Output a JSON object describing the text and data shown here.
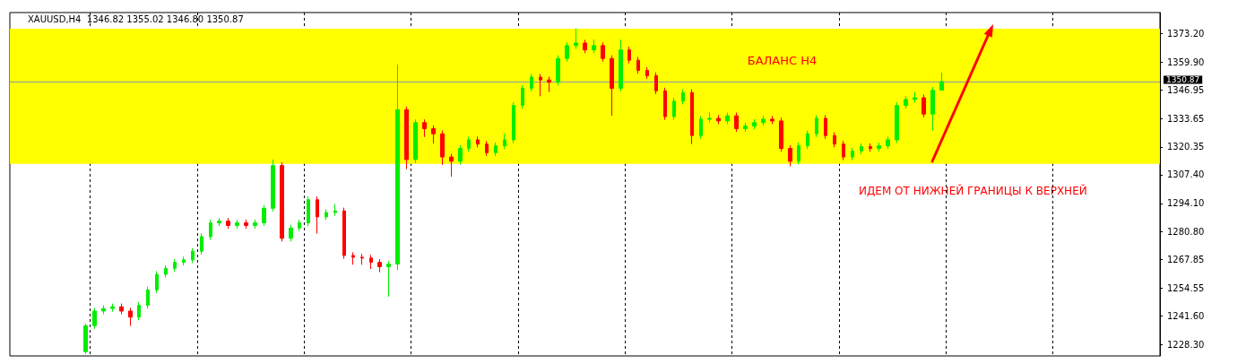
{
  "chart_data": {
    "type": "candlestick",
    "title": "XAUUSD,H4  1346.82 1355.02 1346.80 1350.87",
    "categories": [
      null,
      null,
      null,
      null,
      null,
      null,
      null,
      null,
      null,
      null,
      null,
      null,
      null,
      null,
      null,
      null,
      null,
      null,
      null,
      null,
      null,
      null,
      null,
      null,
      null,
      null,
      null,
      null,
      null,
      null,
      null,
      null,
      null,
      null,
      null,
      null,
      null,
      null,
      null,
      null,
      null,
      null,
      null,
      null,
      null,
      null,
      null,
      null,
      null,
      null,
      null,
      null,
      null,
      null,
      null,
      null,
      null,
      null,
      null,
      null,
      null,
      null,
      null,
      null,
      null,
      null,
      null,
      null,
      null,
      null,
      null,
      null,
      null,
      null,
      null,
      null,
      null,
      null,
      null,
      null,
      null,
      null,
      null,
      null,
      null,
      null,
      null,
      null,
      null,
      null,
      null,
      null,
      null,
      null,
      null,
      null,
      null,
      null,
      null,
      null,
      null,
      null,
      null,
      null,
      null,
      null,
      null,
      null,
      null,
      null,
      null,
      null,
      null,
      null,
      null,
      null,
      null,
      null,
      null,
      null,
      null,
      null,
      null,
      null,
      null,
      null,
      null,
      null,
      null
    ],
    "ohlc": [
      null,
      null,
      null,
      null,
      null,
      null,
      null,
      null,
      [
        1225.0,
        1238.0,
        1224.0,
        1237.1
      ],
      [
        1237.1,
        1245.4,
        1235.6,
        1243.9
      ],
      [
        1243.9,
        1246.6,
        1242.4,
        1245.1
      ],
      [
        1245.1,
        1247.4,
        1243.6,
        1245.9
      ],
      [
        1245.9,
        1247.4,
        1242.4,
        1243.9
      ],
      [
        1243.9,
        1245.4,
        1237.0,
        1241.1
      ],
      [
        1241.1,
        1248.1,
        1239.6,
        1246.6
      ],
      [
        1246.6,
        1255.3,
        1245.1,
        1253.8
      ],
      [
        1253.8,
        1262.5,
        1252.3,
        1261.0
      ],
      [
        1261.0,
        1265.3,
        1259.5,
        1263.8
      ],
      [
        1263.8,
        1268.1,
        1262.3,
        1266.6
      ],
      [
        1266.6,
        1269.3,
        1265.1,
        1267.8
      ],
      [
        1267.8,
        1273.3,
        1266.3,
        1271.8
      ],
      [
        1271.8,
        1280.1,
        1270.3,
        1278.6
      ],
      [
        1278.6,
        1286.5,
        1277.1,
        1285.0
      ],
      [
        1285.0,
        1287.3,
        1283.5,
        1285.8
      ],
      [
        1285.8,
        1287.3,
        1282.3,
        1283.8
      ],
      [
        1283.8,
        1286.5,
        1282.3,
        1285.0
      ],
      [
        1285.0,
        1286.5,
        1282.3,
        1283.8
      ],
      [
        1283.8,
        1286.5,
        1282.3,
        1285.0
      ],
      [
        1285.0,
        1293.3,
        1283.5,
        1291.8
      ],
      [
        1291.8,
        1314.5,
        1290.3,
        1311.7
      ],
      [
        1311.7,
        1313.2,
        1276.3,
        1277.8
      ],
      [
        1277.8,
        1284.1,
        1276.3,
        1282.6
      ],
      [
        1282.6,
        1286.5,
        1281.1,
        1285.0
      ],
      [
        1285.0,
        1297.3,
        1283.5,
        1295.8
      ],
      [
        1295.8,
        1297.3,
        1280.0,
        1287.8
      ],
      [
        1287.8,
        1291.3,
        1286.3,
        1289.8
      ],
      [
        1289.8,
        1293.8,
        1288.3,
        1290.6
      ],
      [
        1290.6,
        1292.1,
        1268.3,
        1269.8
      ],
      [
        1269.8,
        1271.3,
        1265.5,
        1269.0
      ],
      [
        1269.0,
        1270.5,
        1265.5,
        1268.6
      ],
      [
        1268.6,
        1270.1,
        1263.5,
        1266.6
      ],
      [
        1266.6,
        1268.1,
        1262.0,
        1264.6
      ],
      [
        1264.6,
        1267.3,
        1250.6,
        1265.8
      ],
      [
        1265.8,
        1358.8,
        1263.0,
        1337.7
      ],
      [
        1337.7,
        1339.2,
        1310.0,
        1314.5
      ],
      [
        1314.5,
        1333.2,
        1313.0,
        1331.7
      ],
      [
        1331.7,
        1333.2,
        1325.0,
        1328.9
      ],
      [
        1328.9,
        1330.4,
        1322.0,
        1326.5
      ],
      [
        1326.5,
        1328.0,
        1312.0,
        1315.7
      ],
      [
        1315.7,
        1317.2,
        1306.5,
        1313.7
      ],
      [
        1313.7,
        1321.2,
        1312.2,
        1319.7
      ],
      [
        1319.7,
        1325.2,
        1318.2,
        1323.7
      ],
      [
        1323.7,
        1325.2,
        1320.2,
        1321.7
      ],
      [
        1321.7,
        1323.2,
        1316.2,
        1317.7
      ],
      [
        1317.7,
        1322.4,
        1316.2,
        1320.9
      ],
      [
        1320.9,
        1326.7,
        1319.4,
        1323.7
      ],
      [
        1323.7,
        1341.2,
        1322.2,
        1339.7
      ],
      [
        1339.7,
        1349.2,
        1338.2,
        1347.7
      ],
      [
        1347.7,
        1354.4,
        1346.2,
        1352.9
      ],
      [
        1352.9,
        1354.4,
        1344.0,
        1351.6
      ],
      [
        1351.6,
        1353.1,
        1346.0,
        1350.5
      ],
      [
        1350.5,
        1363.1,
        1349.0,
        1361.6
      ],
      [
        1361.6,
        1369.1,
        1360.1,
        1367.6
      ],
      [
        1367.6,
        1375.6,
        1366.1,
        1368.8
      ],
      [
        1368.8,
        1370.3,
        1364.1,
        1365.6
      ],
      [
        1365.6,
        1370.5,
        1364.1,
        1367.6
      ],
      [
        1367.6,
        1369.1,
        1360.1,
        1361.6
      ],
      [
        1361.6,
        1363.1,
        1334.9,
        1347.7
      ],
      [
        1347.7,
        1370.4,
        1346.2,
        1365.6
      ],
      [
        1365.6,
        1367.1,
        1359.3,
        1360.8
      ],
      [
        1360.8,
        1362.3,
        1354.5,
        1356.0
      ],
      [
        1356.0,
        1357.5,
        1352.1,
        1353.6
      ],
      [
        1353.6,
        1355.1,
        1345.0,
        1346.5
      ],
      [
        1346.5,
        1348.0,
        1333.0,
        1334.5
      ],
      [
        1334.5,
        1343.2,
        1333.0,
        1341.7
      ],
      [
        1341.7,
        1347.2,
        1340.2,
        1345.7
      ],
      [
        1345.7,
        1347.2,
        1321.7,
        1325.7
      ],
      [
        1325.7,
        1334.8,
        1324.2,
        1333.3
      ],
      [
        1333.3,
        1336.5,
        1331.8,
        1333.7
      ],
      [
        1333.7,
        1335.2,
        1331.0,
        1332.5
      ],
      [
        1332.5,
        1336.4,
        1331.0,
        1334.9
      ],
      [
        1334.9,
        1336.4,
        1327.4,
        1328.9
      ],
      [
        1328.9,
        1331.6,
        1327.4,
        1330.1
      ],
      [
        1330.1,
        1333.2,
        1328.6,
        1331.7
      ],
      [
        1331.7,
        1334.8,
        1330.2,
        1333.3
      ],
      [
        1333.3,
        1334.8,
        1331.0,
        1332.5
      ],
      [
        1332.5,
        1334.0,
        1318.2,
        1319.7
      ],
      [
        1319.7,
        1321.2,
        1311.3,
        1313.7
      ],
      [
        1313.7,
        1322.4,
        1312.2,
        1320.9
      ],
      [
        1320.9,
        1328.0,
        1319.4,
        1326.5
      ],
      [
        1326.5,
        1335.2,
        1325.0,
        1333.7
      ],
      [
        1333.7,
        1335.2,
        1324.2,
        1325.7
      ],
      [
        1325.7,
        1327.2,
        1320.2,
        1321.7
      ],
      [
        1321.7,
        1323.2,
        1314.2,
        1315.7
      ],
      [
        1315.7,
        1320.0,
        1314.2,
        1318.5
      ],
      [
        1318.5,
        1322.0,
        1317.0,
        1320.5
      ],
      [
        1320.5,
        1322.0,
        1318.2,
        1319.7
      ],
      [
        1319.7,
        1322.4,
        1318.2,
        1320.9
      ],
      [
        1320.9,
        1325.2,
        1319.4,
        1323.7
      ],
      [
        1323.7,
        1341.2,
        1322.2,
        1339.7
      ],
      [
        1339.7,
        1344.0,
        1338.2,
        1342.5
      ],
      [
        1342.5,
        1346.0,
        1341.0,
        1343.3
      ],
      [
        1343.3,
        1344.8,
        1334.2,
        1335.7
      ],
      [
        1335.7,
        1348.3,
        1328.0,
        1346.8
      ],
      [
        1346.82,
        1355.02,
        1346.8,
        1350.87
      ],
      null,
      null,
      null,
      null,
      null,
      null,
      null,
      null,
      null,
      null,
      null,
      null,
      null,
      null,
      null,
      null,
      null,
      null,
      null,
      null,
      null,
      null,
      null,
      null
    ],
    "ylim": [
      1223,
      1383
    ],
    "yticks": [
      {
        "value": 1228.3,
        "label": "1228.30"
      },
      {
        "value": 1241.6,
        "label": "1241.60"
      },
      1254.55,
      1267.85,
      {
        "value": 1280.8,
        "label": "1280.80"
      },
      {
        "value": 1294.1,
        "label": "1294.10"
      },
      {
        "value": 1307.4,
        "label": "1307.40"
      },
      1320.35,
      1333.65,
      1346.95,
      {
        "value": 1359.9,
        "label": "1359.90"
      },
      {
        "value": 1373.2,
        "label": "1373.20"
      }
    ],
    "ref_lines": [
      {
        "axis": "y",
        "value": 1350.87,
        "label": "1350.87",
        "color": "#8a9bb0"
      }
    ],
    "bands": [
      {
        "axis": "y",
        "from": 1312.5,
        "to": 1375.5,
        "label": "БАЛАНС H4",
        "color": "#ffff00"
      }
    ],
    "annotations": [
      "ИДЕМ ОТ НИЖНЕЙ ГРАНИЦЫ К ВЕРХНЕЙ"
    ],
    "tick_labels": "y",
    "grid": false
  }
}
